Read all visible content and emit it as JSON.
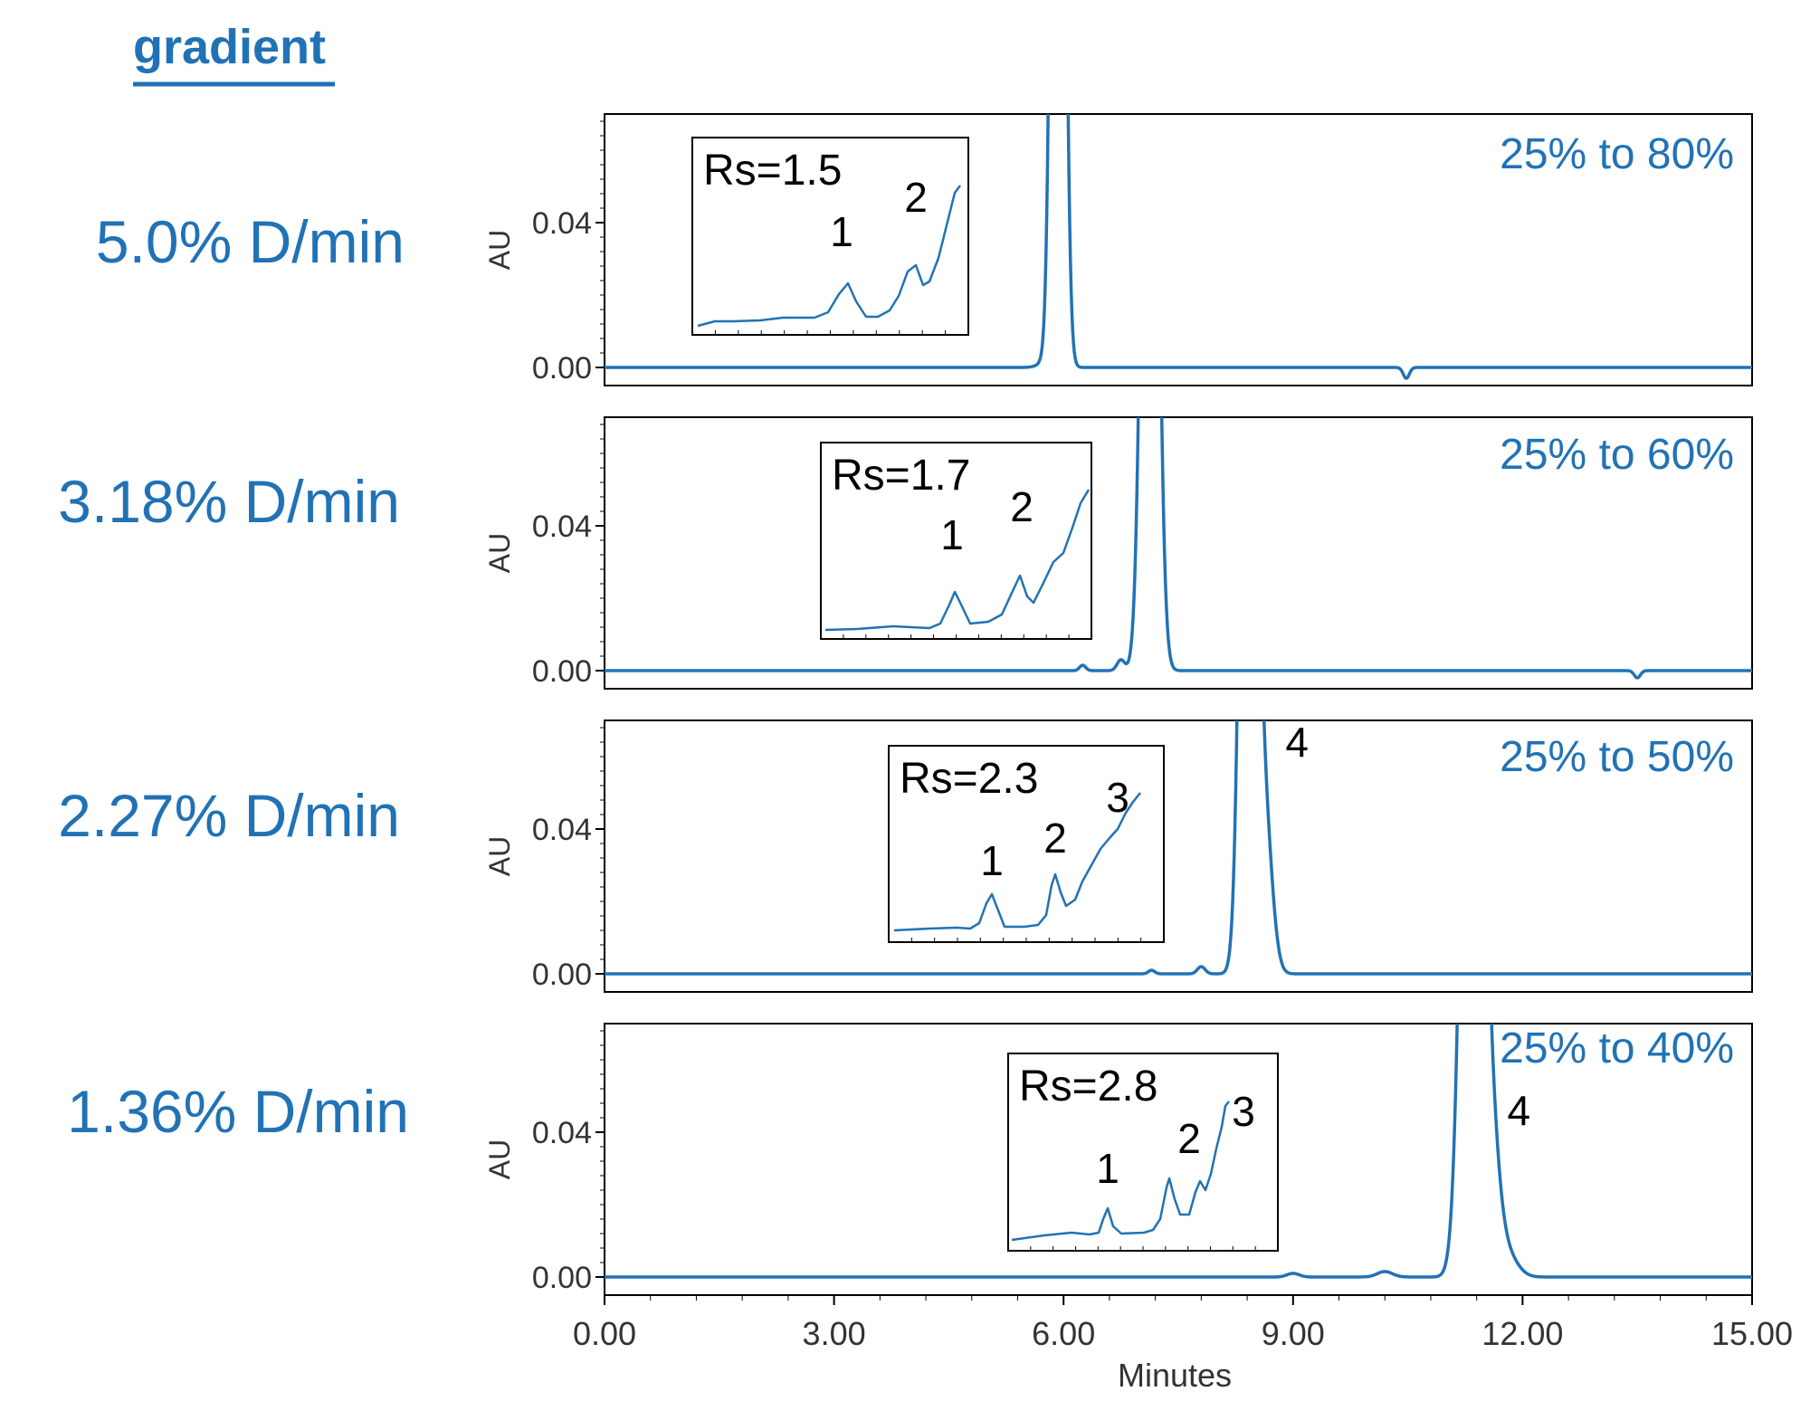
{
  "header": {
    "title": "gradient"
  },
  "x_axis": {
    "label": "Minutes",
    "ticks": [
      "0.00",
      "3.00",
      "6.00",
      "9.00",
      "12.00",
      "15.00"
    ]
  },
  "colors": {
    "trace": "#2172b5",
    "text_accent": "#2172b5"
  },
  "chart_data": [
    {
      "type": "line",
      "row_label": "5.0% D/min",
      "range_label": "25% to 80%",
      "ylabel": "AU",
      "yticks": [
        "0.04",
        "0.00"
      ],
      "xlim": [
        0,
        15
      ],
      "ylim": [
        -0.005,
        0.07
      ],
      "peaks": [
        {
          "t": 5.93,
          "h": 0.4,
          "w": 0.07
        },
        {
          "t": 5.78,
          "h": 0.0015,
          "w": 0.1
        },
        {
          "t": 10.48,
          "h": -0.003,
          "w": 0.04
        }
      ],
      "inset": {
        "rs_label": "Rs=1.5",
        "peak_labels": [
          "1",
          "2"
        ]
      }
    },
    {
      "type": "line",
      "row_label": "3.18% D/min",
      "range_label": "25% to 60%",
      "ylabel": "AU",
      "yticks": [
        "0.04",
        "0.00"
      ],
      "xlim": [
        0,
        15
      ],
      "ylim": [
        -0.005,
        0.07
      ],
      "peaks": [
        {
          "t": 7.13,
          "h": 0.3,
          "w": 0.09
        },
        {
          "t": 6.75,
          "h": 0.003,
          "w": 0.05
        },
        {
          "t": 6.25,
          "h": 0.0015,
          "w": 0.04
        },
        {
          "t": 13.5,
          "h": -0.002,
          "w": 0.04
        }
      ],
      "inset": {
        "rs_label": "Rs=1.7",
        "peak_labels": [
          "1",
          "2"
        ]
      }
    },
    {
      "type": "line",
      "row_label": "2.27% D/min",
      "range_label": "25% to 50%",
      "ylabel": "AU",
      "yticks": [
        "0.04",
        "0.00"
      ],
      "xlim": [
        0,
        15
      ],
      "ylim": [
        -0.005,
        0.07
      ],
      "peaks": [
        {
          "t": 8.42,
          "h": 0.3,
          "w": 0.09
        },
        {
          "t": 8.62,
          "h": 0.045,
          "w": 0.1
        },
        {
          "t": 7.8,
          "h": 0.002,
          "w": 0.05
        },
        {
          "t": 7.15,
          "h": 0.001,
          "w": 0.04
        }
      ],
      "peak_labels": [
        {
          "text": "4",
          "t": 8.9,
          "y": 0.06
        }
      ],
      "inset": {
        "rs_label": "Rs=2.3",
        "peak_labels": [
          "1",
          "2",
          "3"
        ]
      }
    },
    {
      "type": "line",
      "row_label": "1.36% D/min",
      "range_label": "25% to 40%",
      "ylabel": "AU",
      "yticks": [
        "0.04",
        "0.00"
      ],
      "xlim": [
        0,
        15
      ],
      "ylim": [
        -0.005,
        0.07
      ],
      "peaks": [
        {
          "t": 11.35,
          "h": 0.3,
          "w": 0.12
        },
        {
          "t": 11.6,
          "h": 0.028,
          "w": 0.1
        },
        {
          "t": 11.75,
          "h": 0.008,
          "w": 0.15
        },
        {
          "t": 10.2,
          "h": 0.0015,
          "w": 0.1
        },
        {
          "t": 9.0,
          "h": 0.001,
          "w": 0.08
        }
      ],
      "peak_labels": [
        {
          "text": "4",
          "t": 11.8,
          "y": 0.042
        }
      ],
      "inset": {
        "rs_label": "Rs=2.8",
        "peak_labels": [
          "1",
          "2",
          "3"
        ]
      }
    }
  ]
}
